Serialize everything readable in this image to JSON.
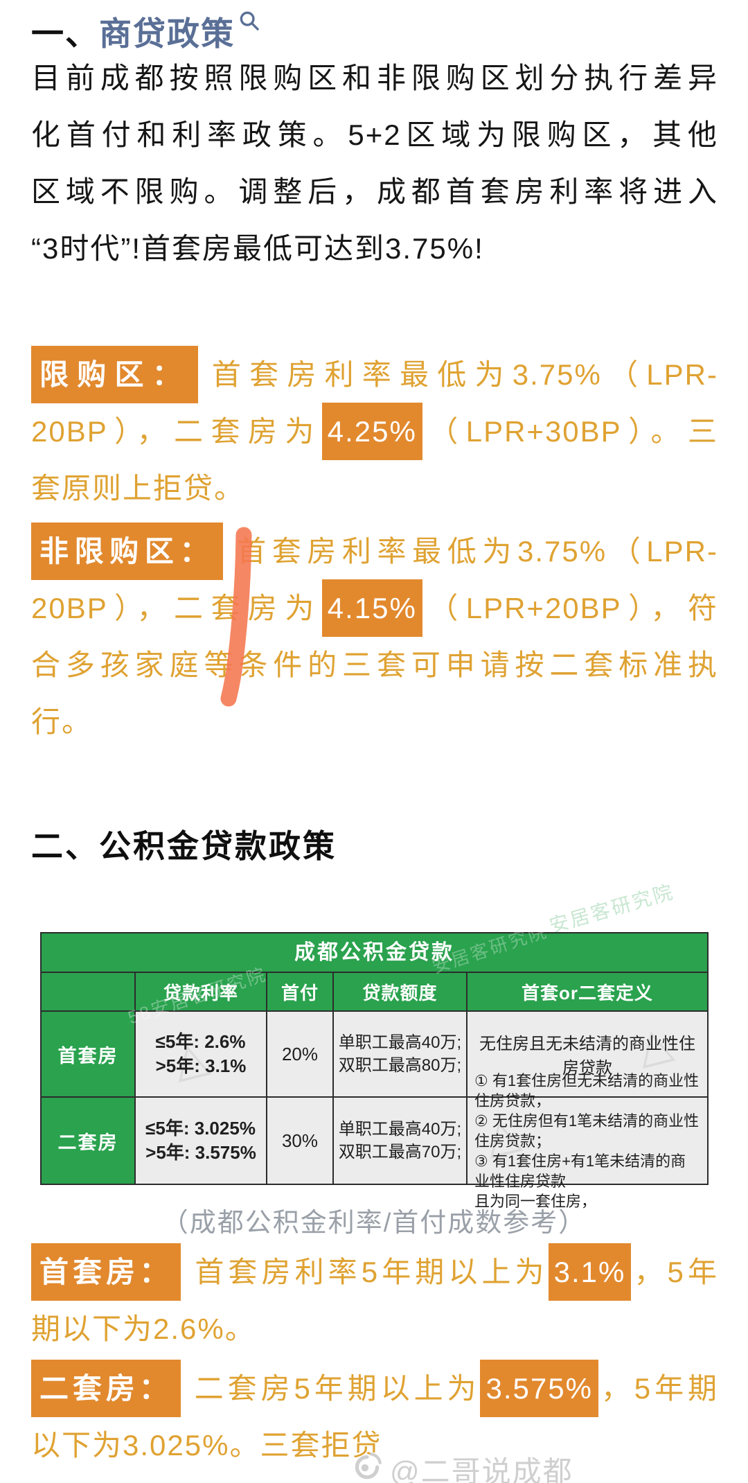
{
  "section1": {
    "heading_prefix": "一、",
    "heading_title": "商贷政策",
    "paragraph_lines": [
      [
        {
          "s": "text",
          "t": "目前成都按照限购区和非限购区划分执行差异"
        }
      ],
      [
        {
          "s": "text",
          "t": "化首付和利率政策。5+2区域为限购区，其他"
        }
      ],
      [
        {
          "s": "text",
          "t": "区域不限购。调整后，成都首套房利率将进入"
        }
      ],
      [
        {
          "s": "text",
          "t": "“3时代”!首套房最低可达到3.75%!"
        }
      ]
    ]
  },
  "restricted": {
    "lines": [
      [
        {
          "s": "label",
          "t": "限购区："
        },
        {
          "s": "text",
          "t": "首套房利率最低为3.75%（LPR-"
        }
      ],
      [
        {
          "s": "text",
          "t": "20BP），二套房为"
        },
        {
          "s": "hl",
          "t": "4.25%"
        },
        {
          "s": "text",
          "t": "（LPR+30BP）。三"
        }
      ],
      [
        {
          "s": "text",
          "t": "套原则上拒贷。"
        }
      ]
    ]
  },
  "non_restricted": {
    "lines": [
      [
        {
          "s": "label",
          "t": "非限购区："
        },
        {
          "s": "text",
          "t": "首套房利率最低为3.75%（LPR-"
        }
      ],
      [
        {
          "s": "text",
          "t": "20BP），二套房为"
        },
        {
          "s": "hl",
          "t": "4.15%"
        },
        {
          "s": "text",
          "t": "（LPR+20BP），符"
        }
      ],
      [
        {
          "s": "text",
          "t": "合多孩家庭等条件的三套可申请按二套标准执"
        }
      ],
      [
        {
          "s": "text",
          "t": "行。"
        }
      ]
    ]
  },
  "section2": {
    "heading": "二、公积金贷款政策"
  },
  "table": {
    "title": "成都公积金贷款",
    "headers": [
      "",
      "贷款利率",
      "首付",
      "贷款额度",
      "首套or二套定义"
    ],
    "rows": [
      {
        "label": "首套房",
        "rate": "≤5年: 2.6%\n>5年: 3.1%",
        "down": "20%",
        "quota": "单职工最高40万;\n双职工最高80万;",
        "definition": "无住房且无未结清的商业性住房贷款"
      },
      {
        "label": "二套房",
        "rate": "≤5年: 3.025%\n>5年: 3.575%",
        "down": "30%",
        "quota": "单职工最高40万;\n双职工最高70万;",
        "definition": "① 有1套住房但无未结清的商业性住房贷款，\n② 无住房但有1笔未结清的商业性住房贷款；\n③ 有1套住房+有1笔未结清的商业性住房贷款\n且为同一套住房，"
      }
    ],
    "watermark_white": "58安居客研究院",
    "watermark_green": "安居客研究院",
    "watermark_logo": "△",
    "caption": "（成都公积金利率/首付成数参考）"
  },
  "fund_first": {
    "lines": [
      [
        {
          "s": "label",
          "t": "首套房："
        },
        {
          "s": "text",
          "t": "首套房利率5年期以上为"
        },
        {
          "s": "hl",
          "t": "3.1%"
        },
        {
          "s": "text",
          "t": "，5年"
        }
      ],
      [
        {
          "s": "text",
          "t": "期以下为2.6%。"
        }
      ]
    ]
  },
  "fund_second": {
    "lines": [
      [
        {
          "s": "label",
          "t": "二套房："
        },
        {
          "s": "text",
          "t": "二套房5年期以上为"
        },
        {
          "s": "hl",
          "t": "3.575%"
        },
        {
          "s": "text",
          "t": "，5年期"
        }
      ],
      [
        {
          "s": "text",
          "t": "以下为3.025%。三套拒贷"
        }
      ]
    ]
  },
  "watermark": {
    "handle": "@二哥说成都"
  },
  "colors": {
    "accent_orange_text": "#DFA232",
    "highlight_bg": "#E2892E",
    "heading_link_blue": "#5A6F96",
    "table_green": "#2AA24E",
    "table_cell_gray": "#ECECEC",
    "brush_stroke_coral": "#F5764F",
    "caption_gray": "#9AA0A8",
    "watermark_gray": "#CFCFCF"
  }
}
